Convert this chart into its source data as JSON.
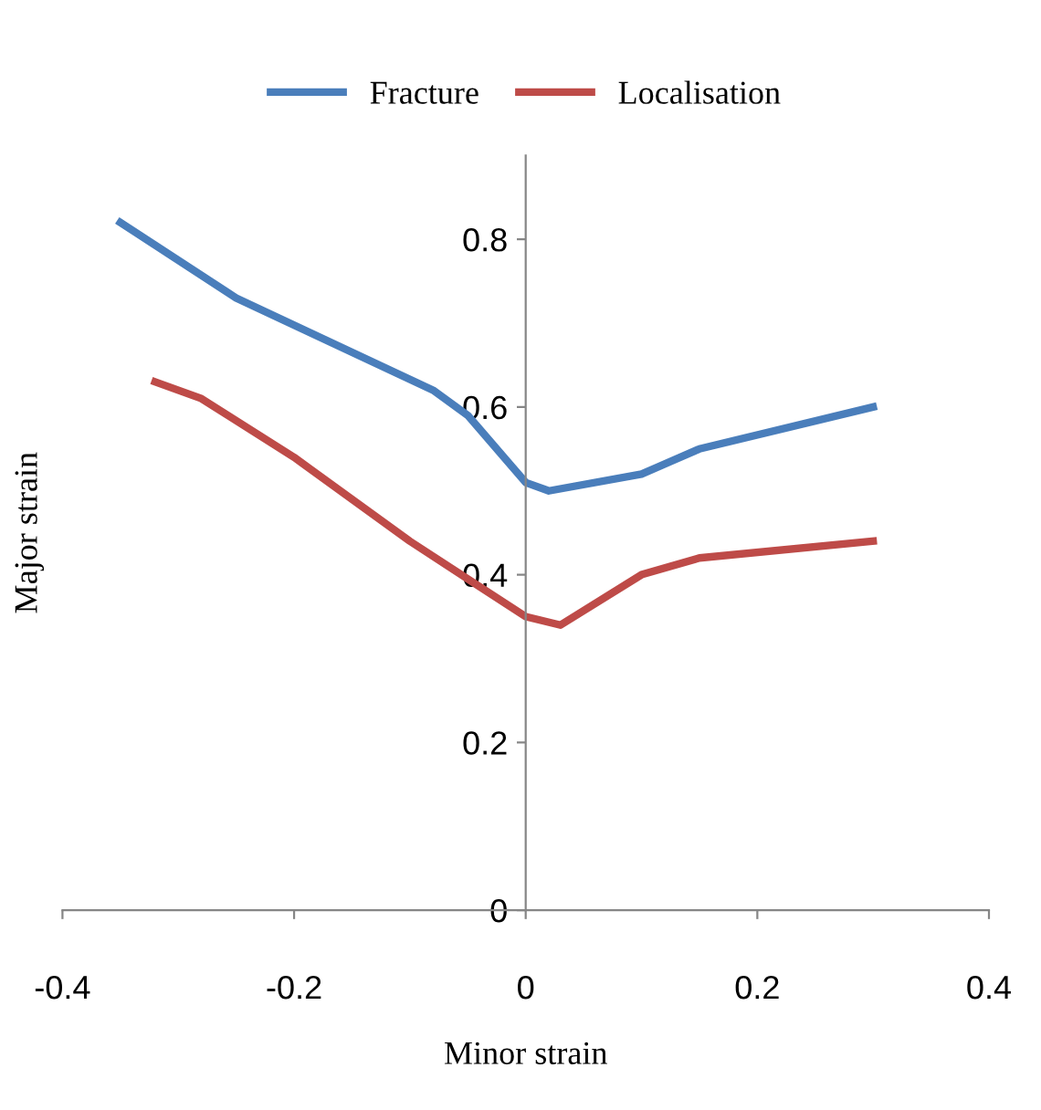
{
  "chart_data": {
    "type": "line",
    "xlabel": "Minor strain",
    "ylabel": "Major strain",
    "series": [
      {
        "name": "Fracture",
        "color": "#4a7ebb",
        "x": [
          -0.35,
          -0.25,
          -0.08,
          -0.05,
          0,
          0.02,
          0.1,
          0.15,
          0.3
        ],
        "values": [
          0.82,
          0.73,
          0.62,
          0.59,
          0.51,
          0.5,
          0.52,
          0.55,
          0.6
        ]
      },
      {
        "name": "Localisation",
        "color": "#be4b48",
        "x": [
          -0.32,
          -0.28,
          -0.2,
          -0.1,
          0,
          0.03,
          0.1,
          0.15,
          0.3
        ],
        "values": [
          0.63,
          0.61,
          0.54,
          0.44,
          0.35,
          0.34,
          0.4,
          0.42,
          0.44
        ]
      }
    ],
    "xlim": [
      -0.4,
      0.4
    ],
    "ylim": [
      0,
      0.9
    ],
    "xticks": [
      -0.4,
      -0.2,
      0,
      0.2,
      0.4
    ],
    "yticks": [
      0,
      0.2,
      0.4,
      0.6,
      0.8
    ],
    "legend": "top",
    "marker": "none",
    "line_style": "solid",
    "grid": false
  }
}
